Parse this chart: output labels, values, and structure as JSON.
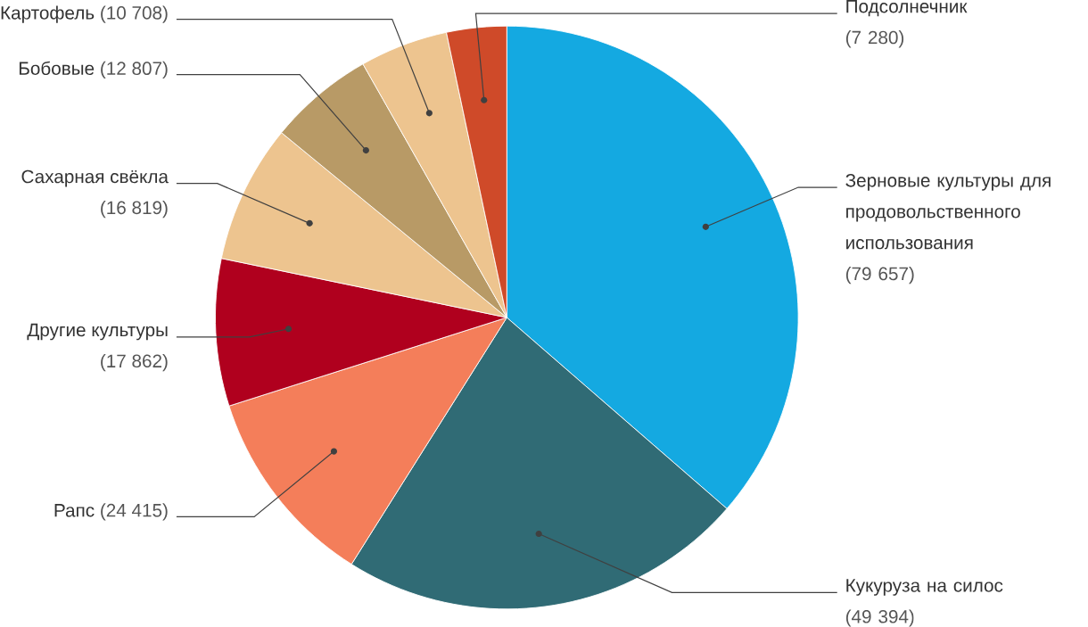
{
  "chart_data": {
    "type": "pie",
    "categories": [
      "Зерновые культуры для продовольственного использования",
      "Кукуруза на силос",
      "Рапс",
      "Другие культуры",
      "Сахарная свёкла",
      "Бобовые",
      "Картофель",
      "Подсолнечник"
    ],
    "values": [
      79657,
      49394,
      24415,
      17862,
      16819,
      12807,
      10708,
      7280
    ],
    "value_labels": [
      "(79 657)",
      "(49 394)",
      "(24 415)",
      "(17 862)",
      "(16 819)",
      "(12 807)",
      "(10 708)",
      "(7 280)"
    ],
    "colors": [
      "#14a9e1",
      "#306b75",
      "#f47e5a",
      "#b0001e",
      "#edc48f",
      "#b89a66",
      "#edc48f",
      "#cf4a29"
    ]
  }
}
